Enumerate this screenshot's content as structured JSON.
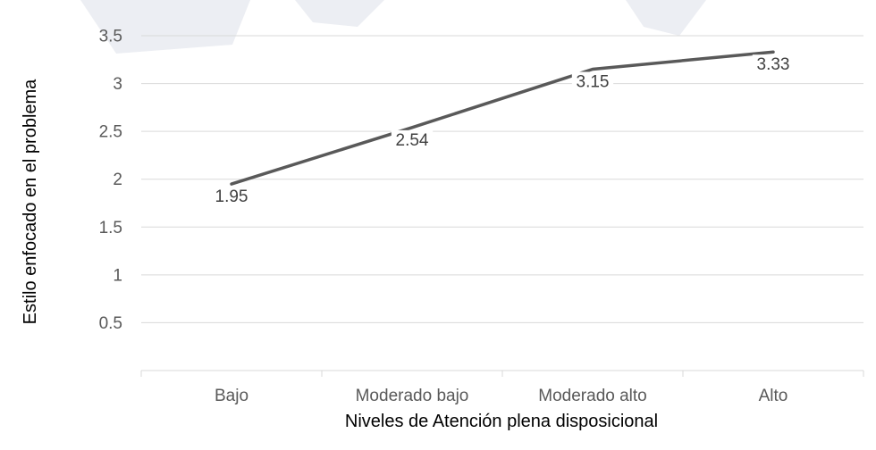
{
  "chart_data": {
    "type": "line",
    "categories": [
      "Bajo",
      "Moderado bajo",
      "Moderado alto",
      "Alto"
    ],
    "series": [
      {
        "values": [
          1.95,
          2.54,
          3.15,
          3.33
        ],
        "data_labels": [
          "1.95",
          "2.54",
          "3.15",
          "3.33"
        ]
      }
    ],
    "xlabel": "Niveles de Atención plena disposicional",
    "ylabel": "Estilo enfocado en el problema",
    "ylim": [
      0,
      3.5
    ],
    "yticks": [
      "0.5",
      "1",
      "1.5",
      "2",
      "2.5",
      "3",
      "3.5"
    ],
    "grid": true,
    "line_color": "#595959",
    "grid_color": "#d9d9d9"
  }
}
